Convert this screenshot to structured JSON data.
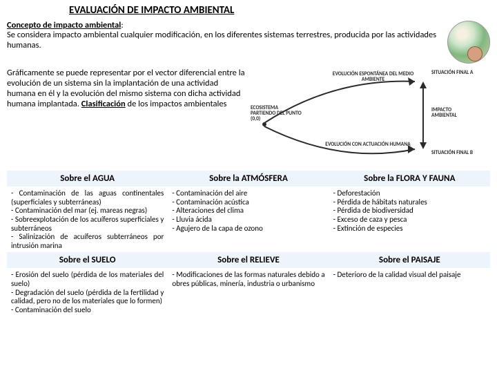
{
  "title": "EVALUACIÓN DE IMPACTO AMBIENTAL",
  "concept_label": "Concepto de impacto ambiental",
  "concept_text": "Se considera impacto ambiental cualquier modificación, en los diferentes sistemas terrestres, producida por las actividades humanas.",
  "graphic_text_a": "Gráficamente se puede representar por el vector diferencial entre la evolución de un sistema sin la implantación de una actividad humana en él y la evolución del mismo sistema con dicha actividad humana implantada. ",
  "clasif_label": "Clasificación",
  "graphic_text_b": " de los impactos ambientales",
  "diagram": {
    "evol_espont": "EVOLUCIÓN ESPONTÁNEA DEL MEDIO AMBIENTE",
    "evol_act": "EVOLUCIÓN CON ACTUACIÓN HUMANA",
    "ecosistema": "ECOSISTEMA PARTIENDO DEL PUNTO (0,0)",
    "sit_a": "SITUACIÓN FINAL A",
    "sit_b": "SITUACIÓN FINAL B",
    "impacto": "IMPACTO AMBIENTAL",
    "colors": {
      "line": "#2b2b2b",
      "fill_dark": "#3a3a3a"
    }
  },
  "table": {
    "headers_row1": [
      "Sobre  el  AGUA",
      "Sobre  la  ATMÓSFERA",
      "Sobre  la FLORA  Y  FAUNA"
    ],
    "headers_row2": [
      "Sobre  el  SUELO",
      "Sobre  el  RELIEVE",
      "Sobre  el  PAISAJE"
    ],
    "row1": {
      "agua": "- Contaminación de las aguas continentales (superficiales y subterráneas)\n- Contaminación del mar  (ej. mareas negras)\n- Sobreexplotación de los acuíferos superficiales y subterráneos\n- Salinización de acuíferos subterráneos por intrusión marina",
      "atmosfera": "- Contaminación del aire\n- Contaminación acústica\n- Alteraciones del clima\n- Lluvia ácida\n- Agujero de la capa de ozono",
      "flora": "- Deforestación\n- Pérdida de hábitats naturales\n- Pérdida de biodiversidad\n- Exceso de caza y pesca\n- Extinción de especies"
    },
    "row2": {
      "suelo": "- Erosión del suelo (pérdida de los materiales del suelo)\n- Degradación del suelo (pérdida de la fertilidad y calidad, pero no de los materiales que lo formen)\n- Contaminación del suelo",
      "relieve": "- Modificaciones de las formas naturales debido a obres públicas, minería, industria o urbanismo",
      "paisaje": "- Deterioro de la calidad visual del paisaje"
    }
  },
  "style": {
    "header_bg": "#eef4fb"
  }
}
